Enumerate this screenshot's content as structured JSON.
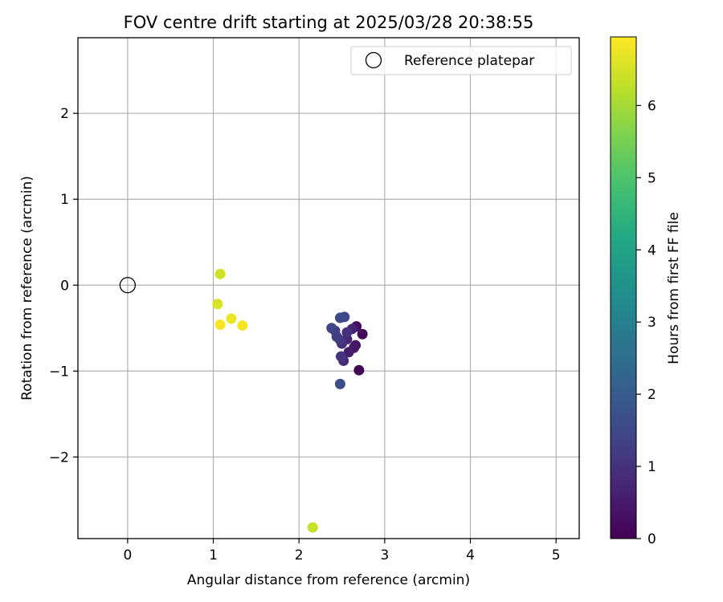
{
  "chart_data": {
    "type": "scatter",
    "title": "FOV centre drift starting at 2025/03/28 20:38:55",
    "xlabel": "Angular distance from reference (arcmin)",
    "ylabel": "Rotation from reference (arcmin)",
    "xlim": [
      -0.58,
      5.27
    ],
    "ylim": [
      -2.95,
      2.88
    ],
    "xticks": [
      0,
      1,
      2,
      3,
      4,
      5
    ],
    "xtick_labels": [
      "0",
      "1",
      "2",
      "3",
      "4",
      "5"
    ],
    "yticks": [
      -2,
      -1,
      0,
      1,
      2
    ],
    "ytick_labels": [
      "−2",
      "−1",
      "0",
      "1",
      "2"
    ],
    "grid": true,
    "legend": {
      "position": "top-right",
      "label": "Reference platepar"
    },
    "reference_point": {
      "x": 0,
      "y": 0
    },
    "colormap": "viridis",
    "colorbar": {
      "label": "Hours from first FF file",
      "range": [
        0,
        6.95
      ],
      "ticks": [
        0,
        1,
        2,
        3,
        4,
        5,
        6
      ],
      "tick_labels": [
        "0",
        "1",
        "2",
        "3",
        "4",
        "5",
        "6"
      ]
    },
    "points": [
      {
        "x": 2.7,
        "y": -0.99,
        "t": 0.05
      },
      {
        "x": 2.74,
        "y": -0.57,
        "t": 0.15
      },
      {
        "x": 2.67,
        "y": -0.48,
        "t": 0.25
      },
      {
        "x": 2.66,
        "y": -0.7,
        "t": 0.35
      },
      {
        "x": 2.64,
        "y": -0.73,
        "t": 0.45
      },
      {
        "x": 2.58,
        "y": -0.78,
        "t": 0.55
      },
      {
        "x": 2.62,
        "y": -0.51,
        "t": 0.65
      },
      {
        "x": 2.56,
        "y": -0.63,
        "t": 0.75
      },
      {
        "x": 2.52,
        "y": -0.88,
        "t": 0.85
      },
      {
        "x": 2.5,
        "y": -0.68,
        "t": 0.95
      },
      {
        "x": 2.56,
        "y": -0.55,
        "t": 1.0
      },
      {
        "x": 2.49,
        "y": -0.83,
        "t": 1.05
      },
      {
        "x": 2.48,
        "y": -0.64,
        "t": 1.15
      },
      {
        "x": 2.44,
        "y": -0.6,
        "t": 1.25
      },
      {
        "x": 2.42,
        "y": -0.53,
        "t": 1.3
      },
      {
        "x": 2.38,
        "y": -0.5,
        "t": 1.4
      },
      {
        "x": 2.53,
        "y": -0.37,
        "t": 1.45
      },
      {
        "x": 2.48,
        "y": -0.38,
        "t": 1.55
      },
      {
        "x": 2.48,
        "y": -1.15,
        "t": 1.65
      },
      {
        "x": 2.16,
        "y": -2.82,
        "t": 6.35
      },
      {
        "x": 1.08,
        "y": 0.13,
        "t": 6.45
      },
      {
        "x": 1.05,
        "y": -0.22,
        "t": 6.55
      },
      {
        "x": 1.21,
        "y": -0.39,
        "t": 6.75
      },
      {
        "x": 1.34,
        "y": -0.47,
        "t": 6.85
      },
      {
        "x": 1.08,
        "y": -0.46,
        "t": 6.9
      }
    ]
  }
}
